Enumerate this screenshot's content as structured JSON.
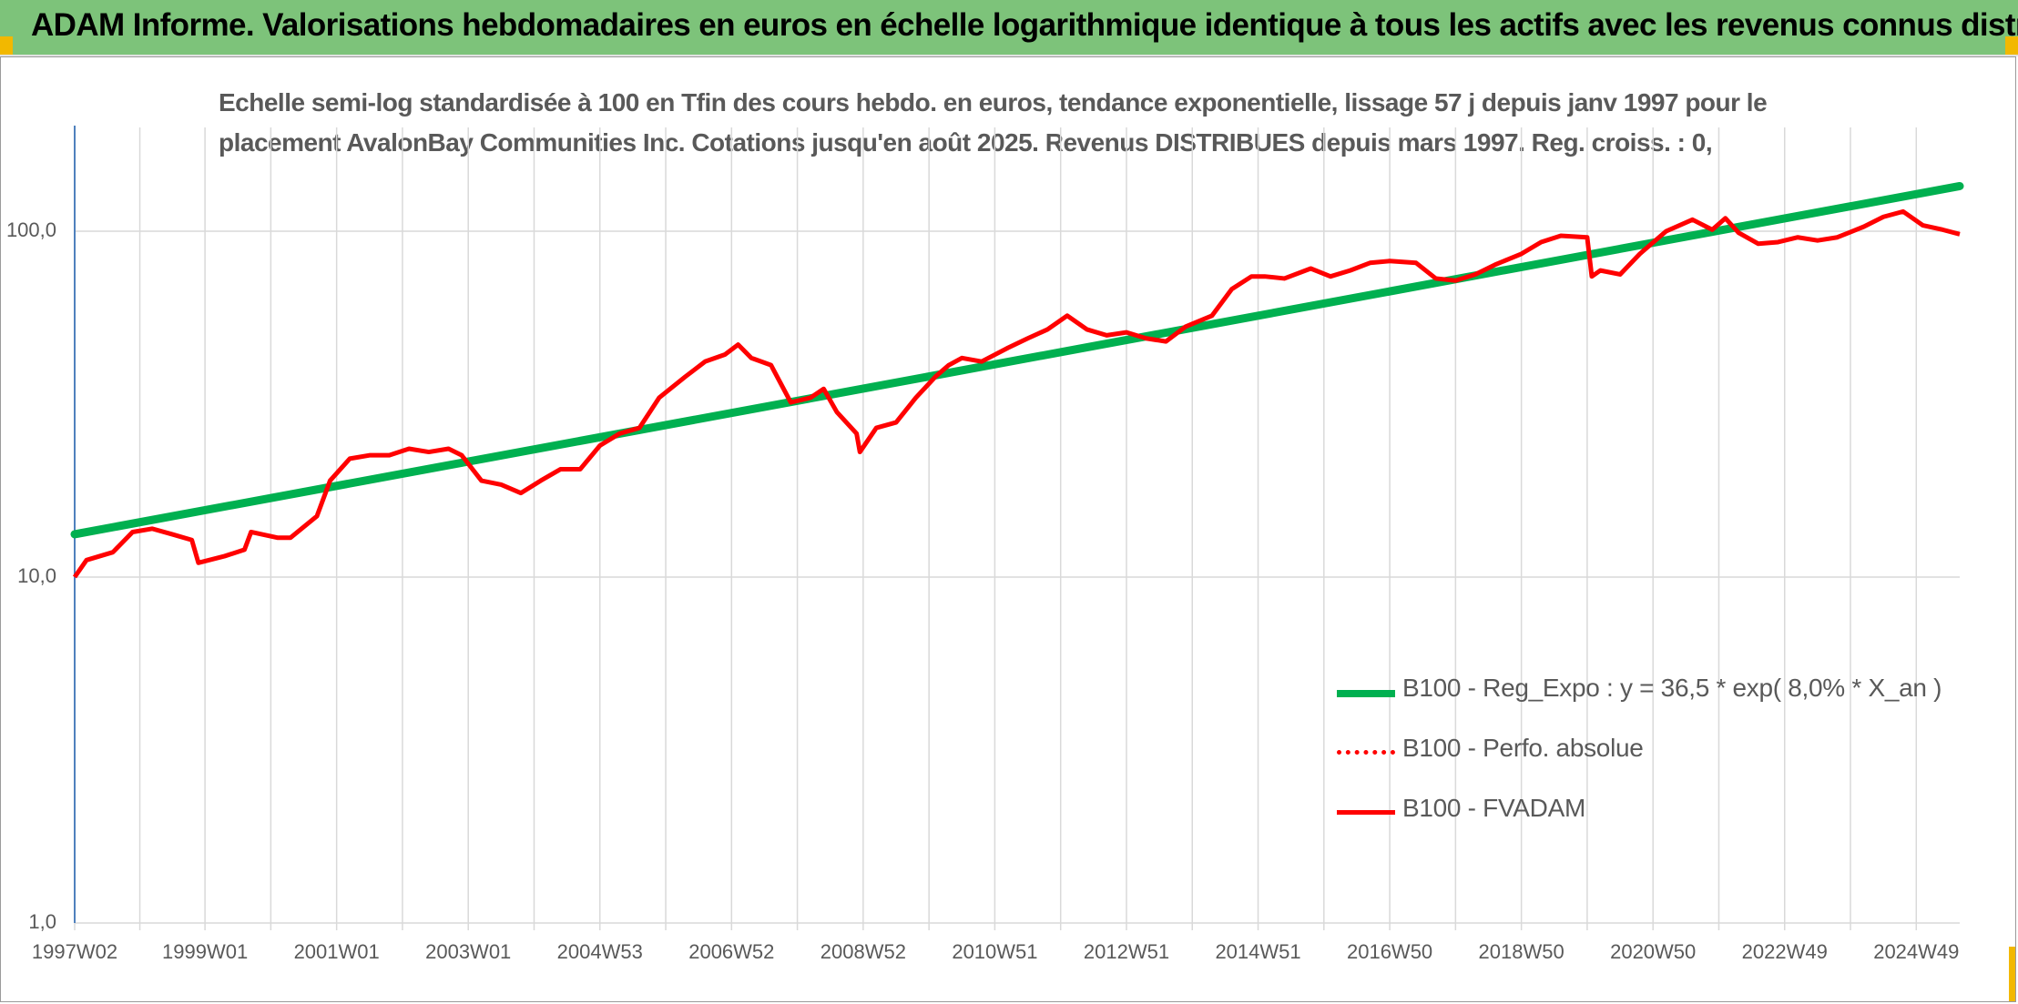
{
  "header": {
    "title": "ADAM Informe. Valorisations hebdomadaires en euros en échelle logarithmique identique à tous les actifs avec les revenus connus distribués"
  },
  "colors": {
    "header_bg": "#7dc37a",
    "corner": "#f2b800",
    "regression": "#00b050",
    "fvadam": "#ff0000",
    "perfo": "#ff0000",
    "grid": "#d9d9d9",
    "axis": "#4f81bd"
  },
  "chart_data": {
    "type": "line",
    "title_line1": "Echelle semi-log standardisée à 100 en Tfin des cours hebdo. en euros, tendance exponentielle, lissage 57 j depuis janv 1997 pour le",
    "title_line2": "placement AvalonBay Communities Inc. Cotations jusqu'en août 2025. Revenus DISTRIBUES depuis mars 1997. Reg. croiss. : 0,",
    "y_scale": "log",
    "ylim": [
      1,
      200
    ],
    "xlim": [
      1997.02,
      2025.66
    ],
    "grid": true,
    "legend_position": "center-right",
    "y_ticks": [
      "1,0",
      "10,0",
      "100,0"
    ],
    "y_tick_values": [
      1,
      10,
      100
    ],
    "x_ticks": [
      "1997W02",
      "1999W01",
      "2001W01",
      "2003W01",
      "2004W53",
      "2006W52",
      "2008W52",
      "2010W51",
      "2012W51",
      "2014W51",
      "2016W50",
      "2018W50",
      "2020W50",
      "2022W49",
      "2024W49"
    ],
    "x_tick_values": [
      1997.02,
      1999.0,
      2001.0,
      2003.0,
      2005.0,
      2007.0,
      2009.0,
      2011.0,
      2013.0,
      2015.0,
      2017.0,
      2019.0,
      2021.0,
      2023.0,
      2025.0
    ],
    "series": [
      {
        "name": "B100 - Reg_Expo : y = 36,5 * exp( 8,0% *  X_an )",
        "style": "solid-thick",
        "x": [
          1997.02,
          2025.66
        ],
        "y": [
          13.3,
          135
        ]
      },
      {
        "name": "B100 - Perfo. absolue",
        "style": "dotted",
        "x": [],
        "y": []
      },
      {
        "name": "B100 - FVADAM",
        "style": "solid",
        "x": [
          1997.02,
          1997.2,
          1997.6,
          1997.9,
          1998.2,
          1998.5,
          1998.8,
          1998.9,
          1999.3,
          1999.6,
          1999.7,
          2000.1,
          2000.3,
          2000.7,
          2000.9,
          2001.2,
          2001.5,
          2001.8,
          2002.1,
          2002.4,
          2002.7,
          2002.9,
          2003.2,
          2003.5,
          2003.8,
          2004.1,
          2004.4,
          2004.7,
          2005.0,
          2005.3,
          2005.6,
          2005.9,
          2006.3,
          2006.6,
          2006.9,
          2007.1,
          2007.3,
          2007.6,
          2007.9,
          2008.2,
          2008.4,
          2008.6,
          2008.9,
          2008.95,
          2009.2,
          2009.5,
          2009.8,
          2010.1,
          2010.3,
          2010.5,
          2010.8,
          2011.2,
          2011.5,
          2011.8,
          2012.1,
          2012.4,
          2012.7,
          2013.0,
          2013.3,
          2013.6,
          2013.9,
          2014.3,
          2014.6,
          2014.9,
          2015.1,
          2015.4,
          2015.8,
          2016.1,
          2016.4,
          2016.7,
          2017.0,
          2017.4,
          2017.7,
          2018.0,
          2018.3,
          2018.6,
          2019.0,
          2019.3,
          2019.6,
          2020.0,
          2020.07,
          2020.2,
          2020.5,
          2020.8,
          2021.2,
          2021.6,
          2021.9,
          2022.1,
          2022.3,
          2022.6,
          2022.9,
          2023.2,
          2023.5,
          2023.8,
          2024.2,
          2024.5,
          2024.8,
          2025.1,
          2025.4,
          2025.66
        ],
        "y": [
          10.0,
          11.2,
          11.8,
          13.5,
          13.8,
          13.3,
          12.8,
          11.0,
          11.5,
          12.0,
          13.5,
          13.0,
          13.0,
          15.0,
          19.0,
          22.0,
          22.5,
          22.5,
          23.5,
          23.0,
          23.5,
          22.5,
          19.0,
          18.5,
          17.5,
          19.0,
          20.5,
          20.5,
          24.0,
          26.0,
          27.0,
          33.0,
          38.0,
          42.0,
          44.0,
          47.0,
          43.0,
          41.0,
          32.0,
          33.0,
          35.0,
          30.0,
          26.0,
          23.0,
          27.0,
          28.0,
          33.0,
          38.0,
          41.0,
          43.0,
          42.0,
          46.0,
          49.0,
          52.0,
          57.0,
          52.0,
          50.0,
          51.0,
          49.0,
          48.0,
          53.0,
          57.0,
          68.0,
          74.0,
          74.0,
          73.0,
          78.0,
          74.0,
          77.0,
          81.0,
          82.0,
          81.0,
          73.0,
          72.0,
          75.0,
          80.0,
          86.0,
          93.0,
          97.0,
          96.0,
          74.0,
          77.0,
          75.0,
          86.0,
          100.0,
          108.0,
          101.0,
          109.0,
          99.0,
          92.0,
          93.0,
          96.0,
          94.0,
          96.0,
          103.0,
          110.0,
          114.0,
          104.0,
          101.0,
          98.0
        ]
      }
    ]
  }
}
